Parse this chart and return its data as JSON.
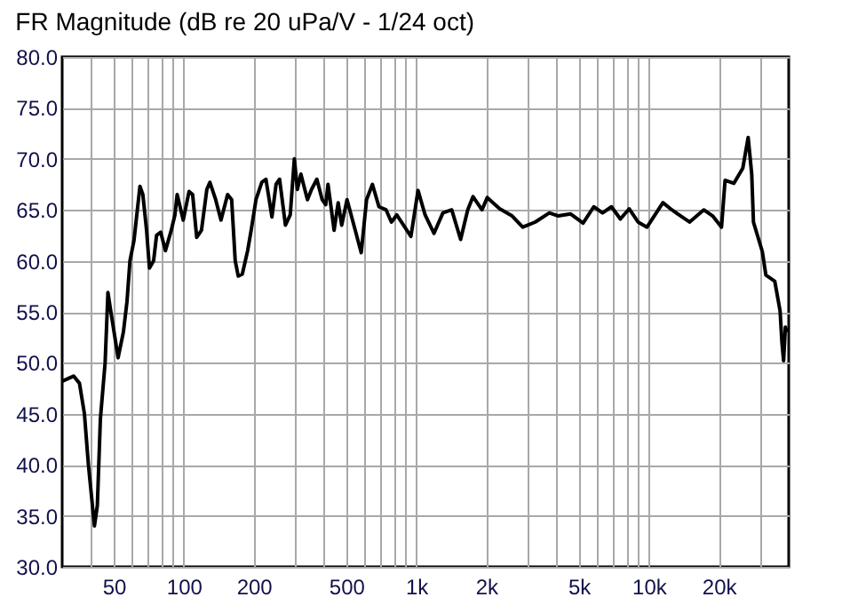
{
  "chart_data": {
    "type": "line",
    "title": "FR Magnitude (dB re 20 uPa/V - 1/24 oct)",
    "log": "x",
    "grid": true,
    "marker": "none",
    "line_style": "solid",
    "x": [
      30,
      33.6,
      35.6,
      37.4,
      38.9,
      41.3,
      42.5,
      43.8,
      45.9,
      47.2,
      48.6,
      52.2,
      55,
      57,
      58.7,
      61.1,
      64.8,
      66.7,
      69.2,
      71.2,
      74.2,
      76.4,
      79.6,
      83.4,
      88.4,
      91.6,
      93.7,
      99.5,
      105.4,
      109.2,
      113.7,
      119.2,
      125.7,
      129.5,
      137.2,
      144.6,
      154.4,
      160.7,
      166.5,
      171.6,
      178.6,
      188.3,
      195,
      204.5,
      216.7,
      225.7,
      239.5,
      249.5,
      258.4,
      273.8,
      287.1,
      299,
      308.1,
      319,
      340.5,
      354.5,
      373.7,
      393.9,
      408,
      417.4,
      443.3,
      461.6,
      478,
      503.9,
      580,
      611.4,
      648,
      691.2,
      741.7,
      782,
      824.5,
      948.6,
      1018,
      1092,
      1192,
      1302,
      1421,
      1552,
      1665,
      1755,
      1917,
      2021,
      2285,
      2584,
      2871,
      3247,
      3737,
      4080,
      4615,
      5220,
      5800,
      6331,
      6914,
      7550,
      8241,
      8999,
      9826,
      11510,
      12570,
      14980,
      17240,
      18830,
      20560,
      21300,
      23250,
      25390,
      26770,
      27730,
      28210,
      30800,
      31900,
      34840,
      36720,
      37390,
      38020,
      38700,
      39390
    ],
    "series": [
      {
        "color": "#000000",
        "values": [
          48.2,
          48.7,
          48,
          45,
          40,
          34,
          36,
          44.5,
          50,
          56.9,
          55,
          50.5,
          53,
          56,
          60,
          62,
          67.3,
          66.5,
          63,
          59.3,
          60,
          62.5,
          62.8,
          61,
          63,
          64.5,
          66.5,
          64,
          66.8,
          66.5,
          62.3,
          63,
          67,
          67.7,
          66,
          64,
          66.5,
          66,
          60,
          58.5,
          58.7,
          61,
          63,
          66,
          67.7,
          68,
          64.3,
          67.5,
          68,
          63.5,
          64.5,
          70,
          67,
          68.5,
          66,
          67,
          68,
          66,
          65.5,
          67.5,
          63,
          65.7,
          63.5,
          66,
          60.8,
          66,
          67.5,
          65.3,
          65,
          63.8,
          64.5,
          62.4,
          66.9,
          64.5,
          62.7,
          64.7,
          65,
          62.1,
          65,
          66.3,
          65,
          66.2,
          65.1,
          64.4,
          63.3,
          63.8,
          64.7,
          64.4,
          64.6,
          63.7,
          65.3,
          64.7,
          65.3,
          64.1,
          65.1,
          63.8,
          63.3,
          65.7,
          65,
          63.8,
          65,
          64.4,
          63.3,
          67.9,
          67.6,
          69.1,
          72.1,
          68.5,
          63.8,
          60.9,
          58.6,
          58,
          55.1,
          52,
          50.2,
          53.5,
          53
        ]
      }
    ],
    "xlim": [
      30,
      40000
    ],
    "xticks": [
      {
        "value": 40,
        "label": null
      },
      {
        "value": 50,
        "label": "50"
      },
      {
        "value": 60,
        "label": null
      },
      {
        "value": 70,
        "label": null
      },
      {
        "value": 80,
        "label": null
      },
      {
        "value": 90,
        "label": null
      },
      {
        "value": 100,
        "label": "100"
      },
      {
        "value": 200,
        "label": "200"
      },
      {
        "value": 300,
        "label": null
      },
      {
        "value": 400,
        "label": null
      },
      {
        "value": 500,
        "label": "500"
      },
      {
        "value": 600,
        "label": null
      },
      {
        "value": 700,
        "label": null
      },
      {
        "value": 800,
        "label": null
      },
      {
        "value": 900,
        "label": null
      },
      {
        "value": 1000,
        "label": "1k"
      },
      {
        "value": 2000,
        "label": "2k"
      },
      {
        "value": 3000,
        "label": null
      },
      {
        "value": 4000,
        "label": null
      },
      {
        "value": 5000,
        "label": "5k"
      },
      {
        "value": 6000,
        "label": null
      },
      {
        "value": 7000,
        "label": null
      },
      {
        "value": 8000,
        "label": null
      },
      {
        "value": 9000,
        "label": null
      },
      {
        "value": 10000,
        "label": "10k"
      },
      {
        "value": 20000,
        "label": "20k"
      },
      {
        "value": 30000,
        "label": null
      }
    ],
    "ylim": [
      30,
      80
    ],
    "yticks": [
      {
        "value": 30,
        "label": "30.0"
      },
      {
        "value": 35,
        "label": "35.0"
      },
      {
        "value": 40,
        "label": "40.0"
      },
      {
        "value": 45,
        "label": "45.0"
      },
      {
        "value": 50,
        "label": "50.0"
      },
      {
        "value": 55,
        "label": "55.0"
      },
      {
        "value": 60,
        "label": "60.0"
      },
      {
        "value": 65,
        "label": "65.0"
      },
      {
        "value": 70,
        "label": "70.0"
      },
      {
        "value": 75,
        "label": "75.0"
      },
      {
        "value": 80,
        "label": "80.0"
      }
    ]
  }
}
